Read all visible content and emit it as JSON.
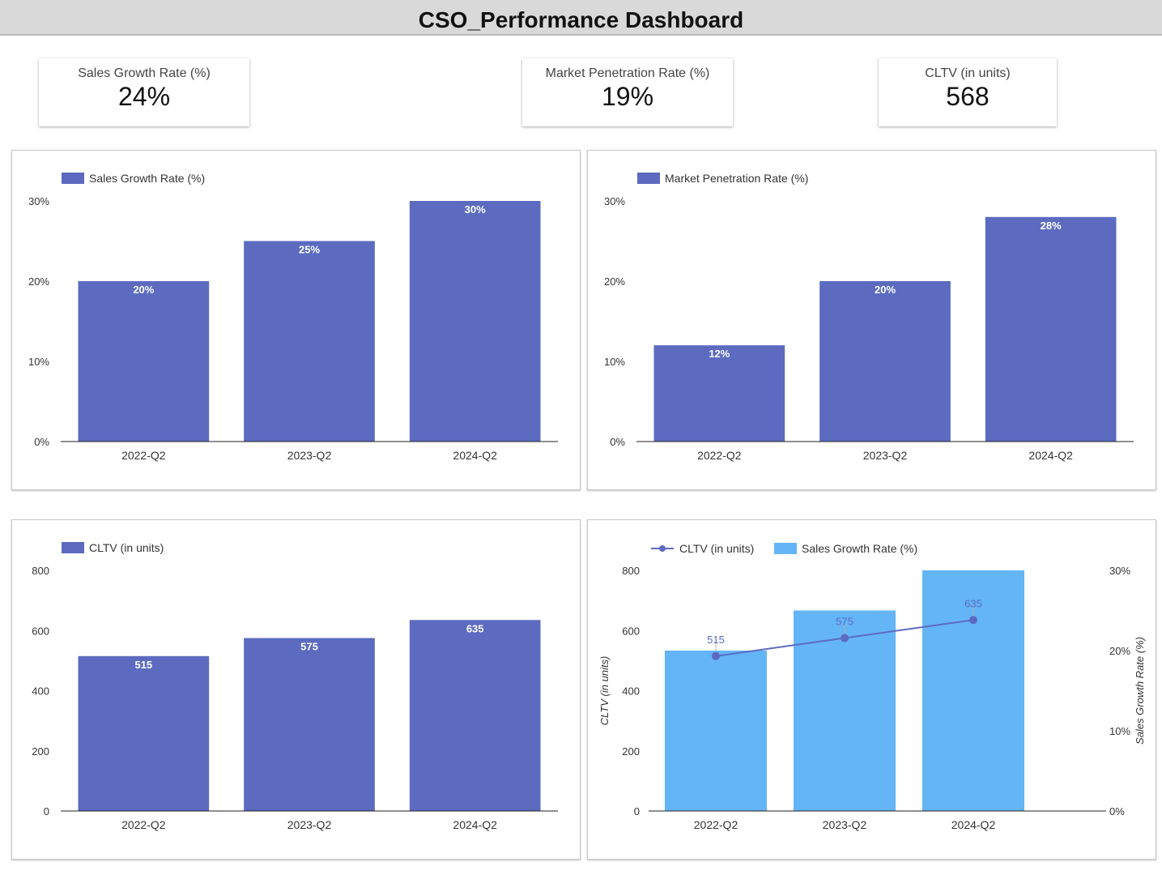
{
  "page": {
    "title": "CSO_Performance Dashboard"
  },
  "kpis": [
    {
      "label": "Sales Growth Rate (%)",
      "value": "24%"
    },
    {
      "label": "Market Penetration Rate (%)",
      "value": "19%"
    },
    {
      "label": "CLTV (in units)",
      "value": "568"
    }
  ],
  "colors": {
    "bar": "#5c6bc0",
    "bar_light": "#64b5f6",
    "line": "#5c6bc0"
  },
  "chart_data": [
    {
      "type": "bar",
      "categories": [
        "2022-Q2",
        "2023-Q2",
        "2024-Q2"
      ],
      "series": [
        {
          "name": "Sales Growth Rate (%)",
          "values": [
            20,
            25,
            30
          ]
        }
      ],
      "data_labels": [
        "20%",
        "25%",
        "30%"
      ],
      "y_ticks": [
        "0%",
        "10%",
        "20%",
        "30%"
      ],
      "ylim": [
        0,
        30
      ],
      "legend": "top-left",
      "grid": false
    },
    {
      "type": "bar",
      "categories": [
        "2022-Q2",
        "2023-Q2",
        "2024-Q2"
      ],
      "series": [
        {
          "name": "Market Penetration Rate (%)",
          "values": [
            12,
            20,
            28
          ]
        }
      ],
      "data_labels": [
        "12%",
        "20%",
        "28%"
      ],
      "y_ticks": [
        "0%",
        "10%",
        "20%",
        "30%"
      ],
      "ylim": [
        0,
        30
      ],
      "legend": "top-left",
      "grid": false
    },
    {
      "type": "bar",
      "categories": [
        "2022-Q2",
        "2023-Q2",
        "2024-Q2"
      ],
      "series": [
        {
          "name": "CLTV (in units)",
          "values": [
            515,
            575,
            635
          ]
        }
      ],
      "data_labels": [
        "515",
        "575",
        "635"
      ],
      "y_ticks": [
        "0",
        "200",
        "400",
        "600",
        "800"
      ],
      "ylim": [
        0,
        800
      ],
      "legend": "top-left",
      "grid": false
    },
    {
      "type": "bar",
      "categories": [
        "2022-Q2",
        "2023-Q2",
        "2024-Q2"
      ],
      "series": [
        {
          "name": "CLTV (in units)",
          "type": "line",
          "axis": "left",
          "values": [
            515,
            575,
            635
          ]
        },
        {
          "name": "Sales Growth Rate (%)",
          "type": "bar",
          "axis": "right",
          "values": [
            20,
            25,
            30
          ]
        }
      ],
      "line_labels": [
        "515",
        "575",
        "635"
      ],
      "y_left_ticks": [
        "0",
        "200",
        "400",
        "600",
        "800"
      ],
      "y_left_lim": [
        0,
        800
      ],
      "y_left_label": "CLTV (in units)",
      "y_right_ticks": [
        "0%",
        "10%",
        "20%",
        "30%"
      ],
      "y_right_lim": [
        0,
        30
      ],
      "y_right_label": "Sales Growth Rate (%)",
      "legend": "top-left",
      "grid": false
    }
  ]
}
